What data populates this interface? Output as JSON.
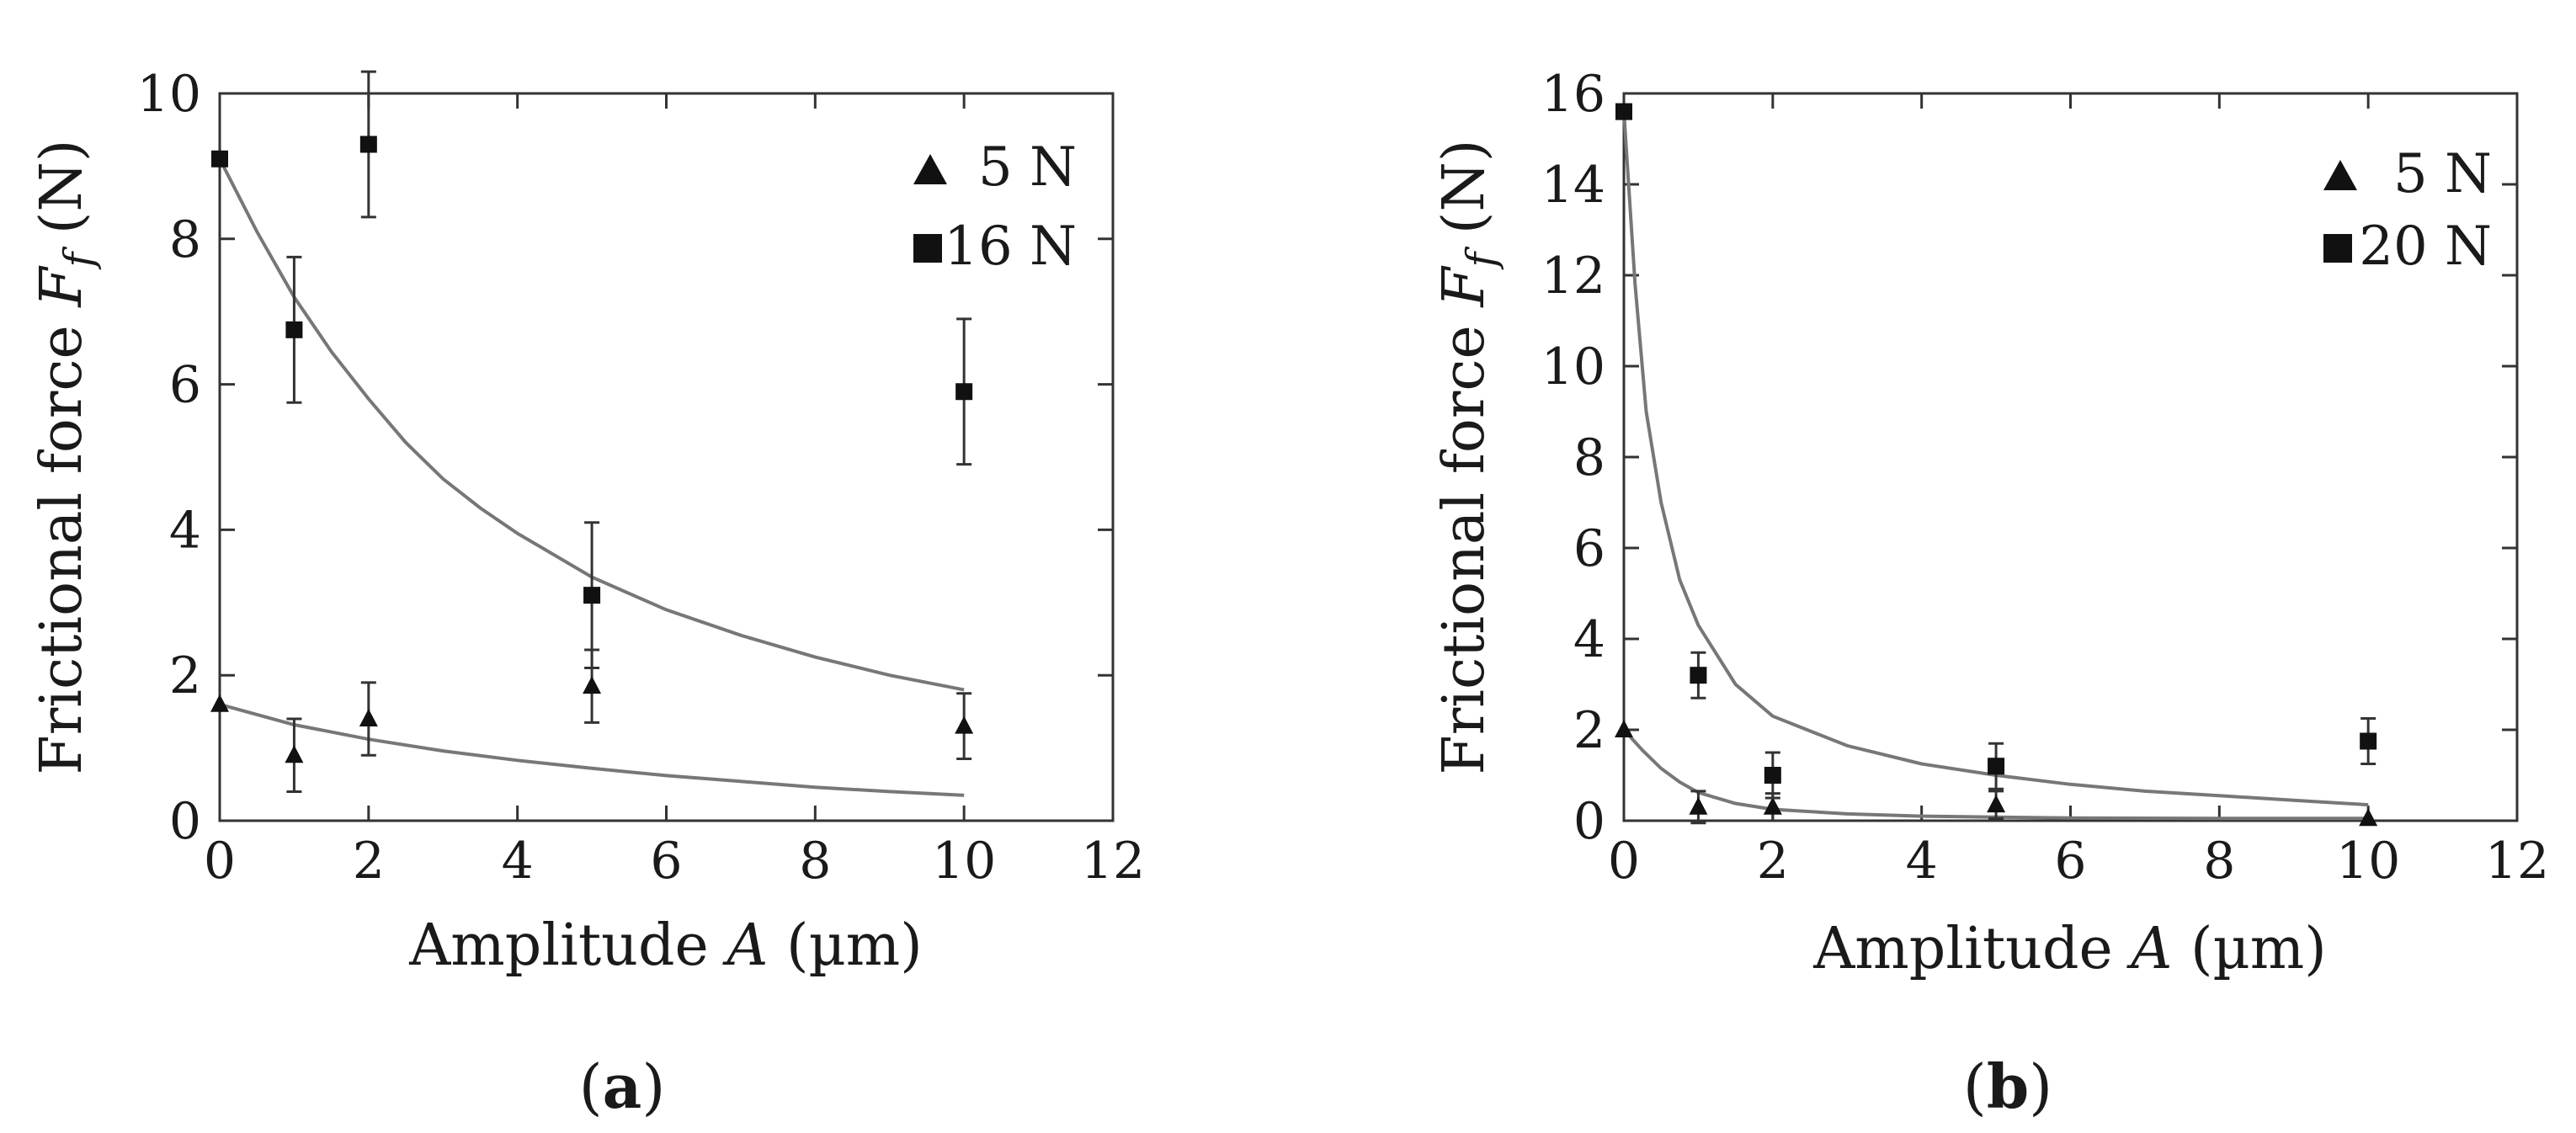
{
  "chart_data": [
    {
      "panel_label": "(a)",
      "type": "scatter",
      "xlabel": {
        "pre": "Amplitude ",
        "var": "A",
        "post": " (µm)"
      },
      "ylabel": {
        "pre": "Frictional force ",
        "var": "F",
        "sub": "f",
        "post": " (N)"
      },
      "xlim": [
        0,
        12
      ],
      "ylim": [
        0,
        10
      ],
      "xticks": [
        "0",
        "2",
        "4",
        "6",
        "8",
        "10",
        "12"
      ],
      "yticks": [
        "0",
        "2",
        "4",
        "6",
        "8",
        "10"
      ],
      "grid": false,
      "legend_position": "top-right",
      "series": [
        {
          "name": "5 N",
          "marker": "triangle",
          "points": [
            {
              "x": 0,
              "y": 1.6,
              "err": 0
            },
            {
              "x": 1,
              "y": 0.9,
              "err": 0.5
            },
            {
              "x": 2,
              "y": 1.4,
              "err": 0.5
            },
            {
              "x": 5,
              "y": 1.85,
              "err": 0.5
            },
            {
              "x": 10,
              "y": 1.3,
              "err": 0.45
            }
          ],
          "fit": [
            [
              0,
              1.6
            ],
            [
              1,
              1.32
            ],
            [
              2,
              1.12
            ],
            [
              3,
              0.96
            ],
            [
              4,
              0.83
            ],
            [
              5,
              0.72
            ],
            [
              6,
              0.62
            ],
            [
              7,
              0.54
            ],
            [
              8,
              0.46
            ],
            [
              9,
              0.4
            ],
            [
              10,
              0.35
            ]
          ]
        },
        {
          "name": "16 N",
          "marker": "square",
          "points": [
            {
              "x": 0,
              "y": 9.1,
              "err": 0
            },
            {
              "x": 1,
              "y": 6.75,
              "err": 1.0
            },
            {
              "x": 2,
              "y": 9.3,
              "err": 1.0
            },
            {
              "x": 5,
              "y": 3.1,
              "err": 1.0
            },
            {
              "x": 10,
              "y": 5.9,
              "err": 1.0
            }
          ],
          "fit": [
            [
              0,
              9.1
            ],
            [
              0.5,
              8.1
            ],
            [
              1,
              7.2
            ],
            [
              1.5,
              6.45
            ],
            [
              2,
              5.8
            ],
            [
              2.5,
              5.2
            ],
            [
              3,
              4.7
            ],
            [
              3.5,
              4.3
            ],
            [
              4,
              3.95
            ],
            [
              5,
              3.35
            ],
            [
              6,
              2.9
            ],
            [
              7,
              2.55
            ],
            [
              8,
              2.25
            ],
            [
              9,
              2.0
            ],
            [
              10,
              1.8
            ]
          ]
        }
      ]
    },
    {
      "panel_label": "(b)",
      "type": "scatter",
      "xlabel": {
        "pre": "Amplitude ",
        "var": "A",
        "post": " (µm)"
      },
      "ylabel": {
        "pre": "Frictional force ",
        "var": "F",
        "sub": "f",
        "post": " (N)"
      },
      "xlim": [
        0,
        12
      ],
      "ylim": [
        0,
        16
      ],
      "xticks": [
        "0",
        "2",
        "4",
        "6",
        "8",
        "10",
        "12"
      ],
      "yticks": [
        "0",
        "2",
        "4",
        "6",
        "8",
        "10",
        "12",
        "14",
        "16"
      ],
      "grid": false,
      "legend_position": "top-right",
      "series": [
        {
          "name": "5 N",
          "marker": "triangle",
          "points": [
            {
              "x": 0,
              "y": 2.0,
              "err": 0
            },
            {
              "x": 1,
              "y": 0.3,
              "err": 0.35
            },
            {
              "x": 2,
              "y": 0.3,
              "err": 0.3
            },
            {
              "x": 5,
              "y": 0.35,
              "err": 0.3
            },
            {
              "x": 10,
              "y": 0.05,
              "err": 0
            }
          ],
          "fit": [
            [
              0,
              2.0
            ],
            [
              0.25,
              1.55
            ],
            [
              0.5,
              1.15
            ],
            [
              0.75,
              0.85
            ],
            [
              1,
              0.62
            ],
            [
              1.5,
              0.38
            ],
            [
              2,
              0.25
            ],
            [
              3,
              0.15
            ],
            [
              4,
              0.1
            ],
            [
              5,
              0.08
            ],
            [
              6,
              0.06
            ],
            [
              8,
              0.05
            ],
            [
              10,
              0.05
            ]
          ]
        },
        {
          "name": "20 N",
          "marker": "square",
          "points": [
            {
              "x": 0,
              "y": 15.6,
              "err": 0
            },
            {
              "x": 1,
              "y": 3.2,
              "err": 0.5
            },
            {
              "x": 2,
              "y": 1.0,
              "err": 0.5
            },
            {
              "x": 5,
              "y": 1.2,
              "err": 0.5
            },
            {
              "x": 10,
              "y": 1.75,
              "err": 0.5
            }
          ],
          "fit": [
            [
              0,
              15.6
            ],
            [
              0.15,
              11.8
            ],
            [
              0.3,
              9.0
            ],
            [
              0.5,
              7.0
            ],
            [
              0.75,
              5.3
            ],
            [
              1,
              4.3
            ],
            [
              1.5,
              3.0
            ],
            [
              2,
              2.3
            ],
            [
              3,
              1.65
            ],
            [
              4,
              1.25
            ],
            [
              5,
              1.0
            ],
            [
              6,
              0.8
            ],
            [
              7,
              0.65
            ],
            [
              8,
              0.55
            ],
            [
              9,
              0.45
            ],
            [
              10,
              0.35
            ]
          ]
        }
      ]
    }
  ]
}
